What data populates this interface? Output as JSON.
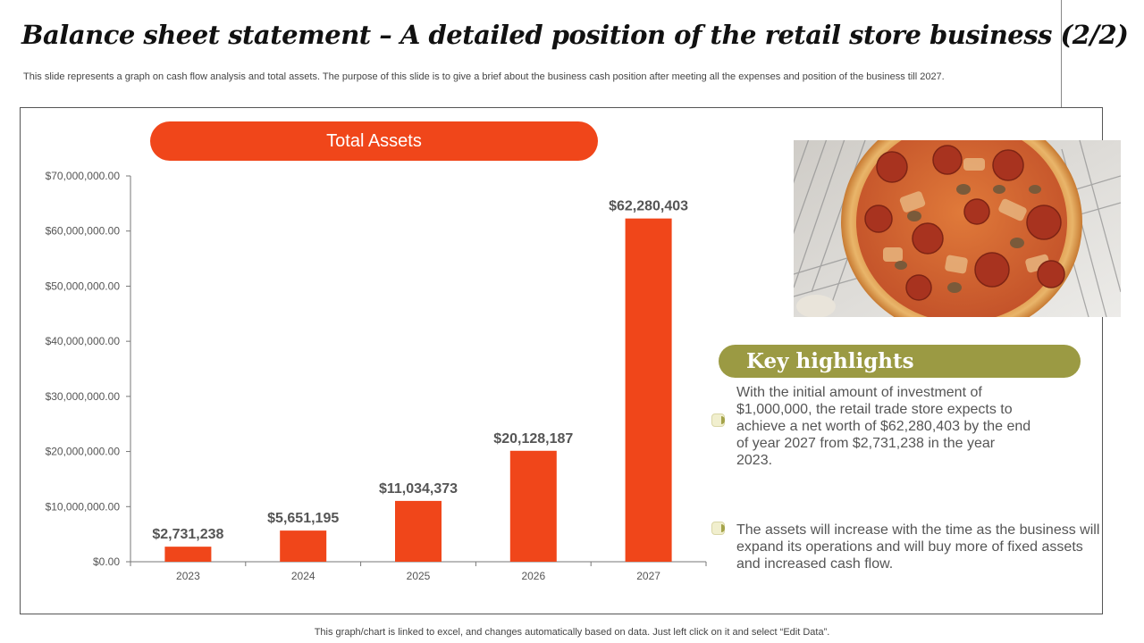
{
  "title": "Balance sheet statement – A detailed position of the retail store business (2/2)",
  "subtitle": "This slide represents a graph on cash flow analysis and total assets. The purpose of this slide is to give a brief about the business cash position after meeting all the expenses and position of the business till 2027.",
  "chart_banner": "Total Assets",
  "chart_data": {
    "type": "bar",
    "title": "Total Assets",
    "categories": [
      "2023",
      "2024",
      "2025",
      "2026",
      "2027"
    ],
    "values": [
      2731238,
      5651195,
      11034373,
      20128187,
      62280403
    ],
    "data_labels": [
      "$2,731,238",
      "$5,651,195",
      "$11,034,373",
      "$20,128,187",
      "$62,280,403"
    ],
    "ylim": [
      0,
      70000000
    ],
    "y_ticks": [
      0,
      10000000,
      20000000,
      30000000,
      40000000,
      50000000,
      60000000,
      70000000
    ],
    "y_tick_labels": [
      "$0.00",
      "$10,000,000.00",
      "$20,000,000.00",
      "$30,000,000.00",
      "$40,000,000.00",
      "$50,000,000.00",
      "$60,000,000.00",
      "$70,000,000.00"
    ],
    "xlabel": "",
    "ylabel": "",
    "grid": false,
    "bar_color": "#f0461a"
  },
  "highlights": {
    "heading": "Key highlights",
    "items": [
      "With the initial amount of investment of $1,000,000, the retail trade store expects to achieve a net worth of $62,280,403 by the end of year 2027 from $2,731,238 in the year 2023.",
      "The assets will increase with the time as the business will expand its operations and will buy more of fixed assets and increased cash flow."
    ]
  },
  "footer": "This graph/chart is linked to excel, and changes automatically based on data. Just left click on it and select “Edit Data”.",
  "colors": {
    "accent": "#f0461a",
    "highlight_banner": "#9b9a43"
  }
}
